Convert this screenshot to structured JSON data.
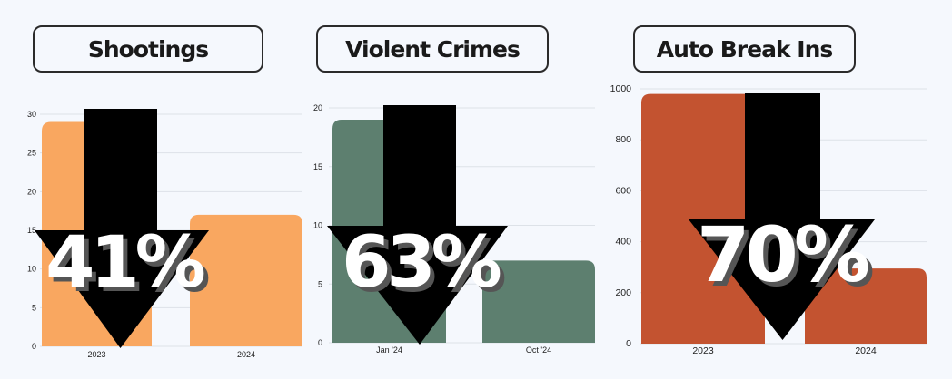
{
  "panels": [
    {
      "title": "Shootings",
      "change": "41%"
    },
    {
      "title": "Violent Crimes",
      "change": "63%"
    },
    {
      "title": "Auto Break Ins",
      "change": "70%"
    }
  ],
  "colors": {
    "shootings": "#f9a760",
    "violent_crimes": "#5d7f6f",
    "auto_break_ins": "#c35330",
    "arrow": "#000000"
  },
  "chart_data": [
    {
      "type": "bar",
      "title": "Shootings",
      "categories": [
        "2023",
        "2024"
      ],
      "values": [
        29,
        17
      ],
      "ylim": [
        0,
        30
      ],
      "yticks": [
        "0",
        "5",
        "10",
        "15",
        "20",
        "25",
        "30"
      ],
      "grid": true,
      "annotation": "41%"
    },
    {
      "type": "bar",
      "title": "Violent Crimes",
      "categories": [
        "Jan '24",
        "Oct '24"
      ],
      "values": [
        19,
        7
      ],
      "ylim": [
        0,
        20
      ],
      "yticks": [
        "0",
        "5",
        "10",
        "15",
        "20"
      ],
      "grid": true,
      "annotation": "63%"
    },
    {
      "type": "bar",
      "title": "Auto Break Ins",
      "categories": [
        "2023",
        "2024"
      ],
      "values": [
        980,
        295
      ],
      "ylim": [
        0,
        1000
      ],
      "yticks": [
        "0",
        "200",
        "400",
        "600",
        "800",
        "1000"
      ],
      "grid": true,
      "annotation": "70%"
    }
  ]
}
